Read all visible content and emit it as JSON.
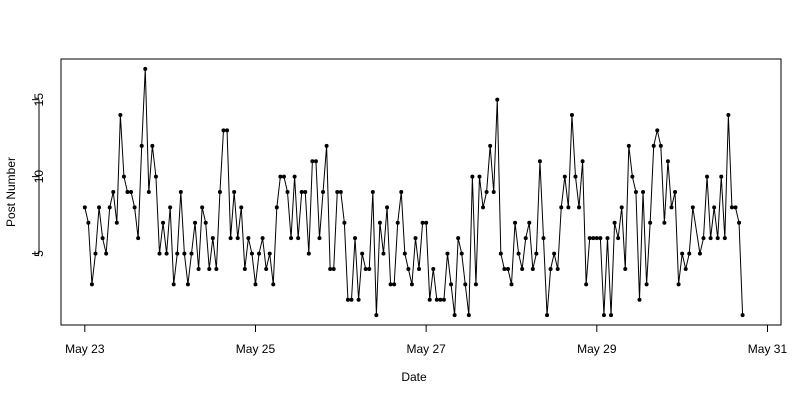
{
  "chart_data": {
    "type": "line",
    "x_label": "Date",
    "y_label": "Post Number",
    "color": "#000000",
    "x": [
      0,
      1,
      2,
      3,
      4,
      5,
      6,
      7,
      8,
      9,
      10,
      11,
      12,
      13,
      14,
      15,
      16,
      17,
      18,
      19,
      20,
      21,
      22,
      23,
      24,
      25,
      26,
      27,
      28,
      29,
      30,
      31,
      32,
      33,
      34,
      35,
      36,
      37,
      38,
      39,
      40,
      41,
      42,
      43,
      44,
      45,
      46,
      47,
      48,
      49,
      50,
      51,
      52,
      53,
      54,
      55,
      56,
      57,
      58,
      59,
      60,
      61,
      62,
      63,
      64,
      65,
      66,
      67,
      68,
      69,
      70,
      71,
      72,
      73,
      74,
      75,
      76,
      77,
      78,
      79,
      80,
      81,
      82,
      83,
      84,
      85,
      86,
      87,
      88,
      89,
      90,
      91,
      92,
      93,
      94,
      95,
      96,
      97,
      98,
      99,
      100,
      101,
      102,
      103,
      104,
      105,
      106,
      107,
      108,
      109,
      110,
      111,
      112,
      113,
      114,
      115,
      116,
      117,
      118,
      119,
      120,
      121,
      122,
      123,
      124,
      125,
      126,
      127,
      128,
      129,
      130,
      131,
      132,
      133,
      134,
      135,
      136,
      137,
      138,
      139,
      140,
      141,
      142,
      143,
      144,
      145,
      146,
      147,
      148,
      149,
      150,
      151,
      152,
      153,
      154,
      155,
      156,
      157,
      158,
      159,
      160,
      161,
      162,
      163,
      164,
      165,
      166,
      167,
      168,
      169,
      170,
      171,
      173,
      174,
      175,
      176,
      177,
      178,
      179,
      180,
      181,
      182,
      183,
      184,
      185
    ],
    "values": [
      8,
      7,
      3,
      5,
      8,
      6,
      5,
      8,
      9,
      7,
      14,
      10,
      9,
      9,
      8,
      6,
      12,
      17,
      9,
      12,
      10,
      5,
      7,
      5,
      8,
      3,
      5,
      9,
      5,
      3,
      5,
      7,
      4,
      8,
      7,
      4,
      6,
      4,
      9,
      13,
      13,
      6,
      9,
      6,
      8,
      4,
      6,
      5,
      3,
      5,
      6,
      4,
      5,
      3,
      8,
      10,
      10,
      9,
      6,
      10,
      6,
      9,
      9,
      5,
      11,
      11,
      6,
      9,
      12,
      4,
      4,
      9,
      9,
      7,
      2,
      2,
      6,
      2,
      5,
      4,
      4,
      9,
      1,
      7,
      5,
      8,
      3,
      3,
      7,
      9,
      5,
      4,
      3,
      6,
      4,
      7,
      7,
      2,
      4,
      2,
      2,
      2,
      5,
      3,
      1,
      6,
      5,
      3,
      1,
      10,
      3,
      10,
      8,
      9,
      12,
      9,
      15,
      5,
      4,
      4,
      3,
      7,
      5,
      4,
      6,
      7,
      4,
      5,
      11,
      6,
      1,
      4,
      5,
      4,
      8,
      10,
      8,
      14,
      10,
      8,
      11,
      3,
      6,
      6,
      6,
      6,
      1,
      6,
      1,
      7,
      6,
      8,
      4,
      12,
      10,
      9,
      2,
      9,
      3,
      7,
      12,
      13,
      12,
      7,
      11,
      8,
      9,
      3,
      5,
      4,
      5,
      8,
      5,
      6,
      10,
      6,
      8,
      6,
      10,
      6,
      14,
      8,
      8,
      7,
      1
    ],
    "xlim": [
      -6.7,
      195.8
    ],
    "xticks": [
      {
        "value": 0,
        "label": "May 23"
      },
      {
        "value": 48,
        "label": "May 25"
      },
      {
        "value": 96,
        "label": "May 27"
      },
      {
        "value": 144,
        "label": "May 29"
      },
      {
        "value": 192,
        "label": "May 31"
      }
    ],
    "ylim": [
      0.36,
      17.64
    ],
    "yticks": [
      5,
      10,
      15
    ]
  }
}
